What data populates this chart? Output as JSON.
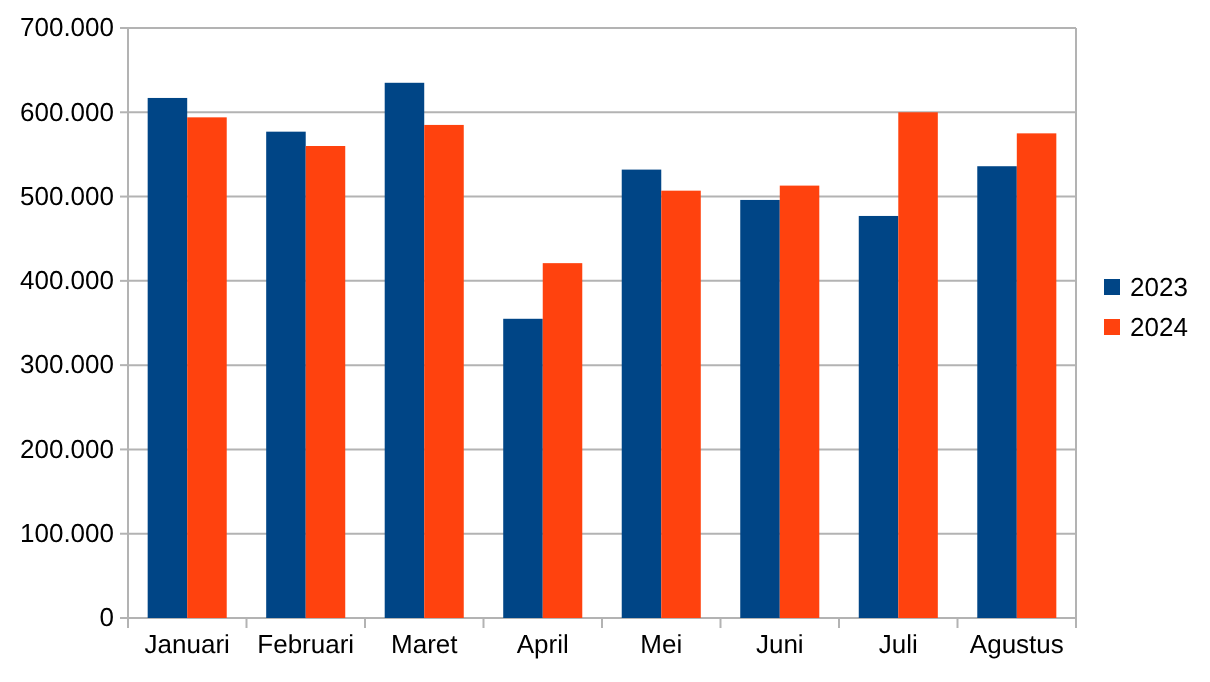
{
  "chart_data": {
    "type": "bar",
    "categories": [
      "Januari",
      "Februari",
      "Maret",
      "April",
      "Mei",
      "Juni",
      "Juli",
      "Agustus"
    ],
    "series": [
      {
        "name": "2023",
        "color": "#004586",
        "values": [
          617000,
          577000,
          635000,
          355000,
          532000,
          496000,
          477000,
          536000
        ]
      },
      {
        "name": "2024",
        "color": "#ff420e",
        "values": [
          594000,
          560000,
          585000,
          421000,
          507000,
          513000,
          600000,
          575000
        ]
      }
    ],
    "ylim": [
      0,
      700000
    ],
    "yticks": [
      {
        "value": 0,
        "label": "0"
      },
      {
        "value": 100000,
        "label": "100.000"
      },
      {
        "value": 200000,
        "label": "200.000"
      },
      {
        "value": 300000,
        "label": "300.000"
      },
      {
        "value": 400000,
        "label": "400.000"
      },
      {
        "value": 500000,
        "label": "500.000"
      },
      {
        "value": 600000,
        "label": "600.000"
      },
      {
        "value": 700000,
        "label": "700.000"
      }
    ],
    "grid": "y",
    "legend": "right"
  }
}
